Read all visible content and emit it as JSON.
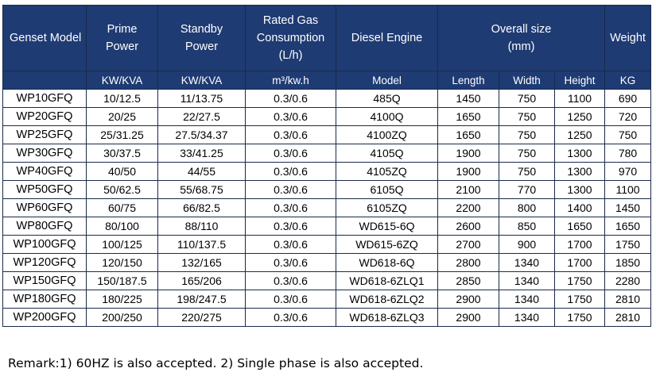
{
  "header": {
    "genset_model": "Genset Model",
    "prime_power": [
      "Prime",
      "Power"
    ],
    "standby_power": [
      "Standby",
      "Power"
    ],
    "rated_gas": [
      "Rated Gas",
      "Consumption",
      "(L/h)"
    ],
    "diesel_engine": "Diesel Engine",
    "overall_size": [
      "Overall size",
      "(mm)"
    ],
    "weight": "Weight"
  },
  "subheader": [
    "KW/KVA",
    "KW/KVA",
    "m³/kw.h",
    "Model",
    "Length",
    "Width",
    "Height",
    "KG"
  ],
  "rows": [
    [
      "WP10GFQ",
      "10/12.5",
      "11/13.75",
      "0.3/0.6",
      "485Q",
      "1450",
      "750",
      "1100",
      "690"
    ],
    [
      "WP20GFQ",
      "20/25",
      "22/27.5",
      "0.3/0.6",
      "4100Q",
      "1650",
      "750",
      "1250",
      "720"
    ],
    [
      "WP25GFQ",
      "25/31.25",
      "27.5/34.37",
      "0.3/0.6",
      "4100ZQ",
      "1650",
      "750",
      "1250",
      "750"
    ],
    [
      "WP30GFQ",
      "30/37.5",
      "33/41.25",
      "0.3/0.6",
      "4105Q",
      "1900",
      "750",
      "1300",
      "780"
    ],
    [
      "WP40GFQ",
      "40/50",
      "44/55",
      "0.3/0.6",
      "4105ZQ",
      "1900",
      "750",
      "1300",
      "970"
    ],
    [
      "WP50GFQ",
      "50/62.5",
      "55/68.75",
      "0.3/0.6",
      "6105Q",
      "2100",
      "770",
      "1300",
      "1100"
    ],
    [
      "WP60GFQ",
      "60/75",
      "66/82.5",
      "0.3/0.6",
      "6105ZQ",
      "2200",
      "800",
      "1400",
      "1450"
    ],
    [
      "WP80GFQ",
      "80/100",
      "88/110",
      "0.3/0.6",
      "WD615-6Q",
      "2600",
      "850",
      "1650",
      "1650"
    ],
    [
      "WP100GFQ",
      "100/125",
      "110/137.5",
      "0.3/0.6",
      "WD615-6ZQ",
      "2700",
      "900",
      "1700",
      "1750"
    ],
    [
      "WP120GFQ",
      "120/150",
      "132/165",
      "0.3/0.6",
      "WD618-6Q",
      "2800",
      "1340",
      "1700",
      "1850"
    ],
    [
      "WP150GFQ",
      "150/187.5",
      "165/206",
      "0.3/0.6",
      "WD618-6ZLQ1",
      "2850",
      "1340",
      "1750",
      "2280"
    ],
    [
      "WP180GFQ",
      "180/225",
      "198/247.5",
      "0.3/0.6",
      "WD618-6ZLQ2",
      "2900",
      "1340",
      "1750",
      "2810"
    ],
    [
      "WP200GFQ",
      "200/250",
      "220/275",
      "0.3/0.6",
      "WD618-6ZLQ3",
      "2900",
      "1340",
      "1750",
      "2810"
    ]
  ],
  "remark": "Remark:1) 60HZ is also accepted. 2) Single phase is also accepted.",
  "colors": {
    "header_bg": "#1f3b73",
    "header_text": "#ffffff",
    "border": "#1a2a4a"
  }
}
